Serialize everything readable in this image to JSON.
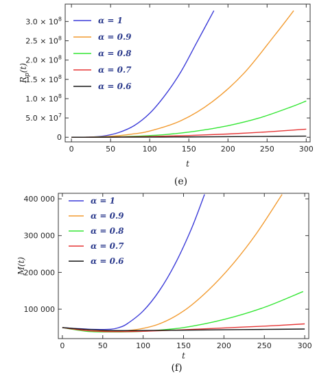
{
  "charts": [
    {
      "type": "line",
      "panel_label": "(e)",
      "xlabel": "t",
      "ylabel": "R_p(t)",
      "ylabel_main": "R",
      "ylabel_sub": "p",
      "ylabel_tail": "(t)",
      "xlim": [
        -8,
        305
      ],
      "ylim": [
        -12000000.0,
        345000000.0
      ],
      "x_ticks": [
        0,
        50,
        100,
        150,
        200,
        250,
        300
      ],
      "x_tick_labels": [
        "0",
        "50",
        "100",
        "150",
        "200",
        "250",
        "300"
      ],
      "y_ticks": [
        0,
        50000000.0,
        100000000.0,
        150000000.0,
        200000000.0,
        250000000.0,
        300000000.0
      ],
      "y_tick_labels": [
        "0",
        "5.0 × 10",
        "1.0 × 10",
        "1.5 × 10",
        "2.0 × 10",
        "2.5 × 10",
        "3.0 × 10"
      ],
      "y_tick_exps": [
        "",
        "7",
        "8",
        "8",
        "8",
        "8",
        "8"
      ],
      "legend_position": "top-left",
      "series": [
        {
          "name": "α = 1",
          "color": "#3a3ad8",
          "x": [
            0,
            20,
            40,
            60,
            80,
            100,
            120,
            140,
            160,
            182
          ],
          "y": [
            0,
            300000.0,
            3000000.0,
            12000000.0,
            30000000.0,
            62000000.0,
            110000000.0,
            170000000.0,
            245000000.0,
            328000000.0
          ]
        },
        {
          "name": "α = 0.9",
          "color": "#f29a2e",
          "x": [
            0,
            20,
            40,
            60,
            80,
            100,
            140,
            180,
            220,
            260,
            284
          ],
          "y": [
            0,
            200000.0,
            1400000.0,
            4000000.0,
            9000000.0,
            16000000.0,
            43000000.0,
            92000000.0,
            165000000.0,
            265000000.0,
            328000000.0
          ]
        },
        {
          "name": "α = 0.8",
          "color": "#33e633",
          "x": [
            0,
            40,
            80,
            120,
            160,
            200,
            240,
            280,
            300
          ],
          "y": [
            0,
            500000.0,
            2500000.0,
            7000000.0,
            16000000.0,
            30000000.0,
            50000000.0,
            78000000.0,
            94000000.0
          ]
        },
        {
          "name": "α = 0.7",
          "color": "#e53333",
          "x": [
            0,
            50,
            100,
            150,
            200,
            250,
            300
          ],
          "y": [
            0,
            400000.0,
            1800000.0,
            4500000.0,
            8500000.0,
            14000000.0,
            21000000.0
          ]
        },
        {
          "name": "α = 0.6",
          "color": "#111111",
          "x": [
            0,
            60,
            120,
            180,
            240,
            300
          ],
          "y": [
            0,
            200000.0,
            600000.0,
            1200000.0,
            2000000.0,
            3000000.0
          ]
        }
      ]
    },
    {
      "type": "line",
      "panel_label": "(f)",
      "xlabel": "t",
      "ylabel": "M(t)",
      "ylabel_main": "M(t)",
      "ylabel_sub": "",
      "ylabel_tail": "",
      "xlim": [
        -5,
        305
      ],
      "ylim": [
        20000,
        415000
      ],
      "x_ticks": [
        0,
        50,
        100,
        150,
        200,
        250,
        300
      ],
      "x_tick_labels": [
        "0",
        "50",
        "100",
        "150",
        "200",
        "250",
        "300"
      ],
      "y_ticks": [
        100000,
        200000,
        300000,
        400000
      ],
      "y_tick_labels": [
        "100 000",
        "200 000",
        "300 000",
        "400 000"
      ],
      "y_tick_exps": [
        "",
        "",
        "",
        ""
      ],
      "legend_position": "top-left",
      "series": [
        {
          "name": "α = 1",
          "color": "#3a3ad8",
          "x": [
            0,
            20,
            40,
            60,
            70,
            80,
            100,
            120,
            140,
            160,
            176
          ],
          "y": [
            50000,
            47000,
            45000,
            45500,
            50000,
            60000,
            95000,
            150000,
            225000,
            320000,
            412000
          ]
        },
        {
          "name": "α = 0.9",
          "color": "#f29a2e",
          "x": [
            0,
            30,
            60,
            90,
            120,
            150,
            180,
            210,
            240,
            272
          ],
          "y": [
            50000,
            42000,
            40000,
            44000,
            60000,
            95000,
            150000,
            220000,
            305000,
            412000
          ]
        },
        {
          "name": "α = 0.8",
          "color": "#33e633",
          "x": [
            0,
            30,
            60,
            100,
            150,
            200,
            250,
            298
          ],
          "y": [
            50000,
            40000,
            38000,
            40000,
            50000,
            72000,
            105000,
            148000
          ]
        },
        {
          "name": "α = 0.7",
          "color": "#e53333",
          "x": [
            0,
            30,
            60,
            100,
            150,
            200,
            250,
            300
          ],
          "y": [
            50000,
            42000,
            39000,
            40000,
            44000,
            49000,
            54000,
            60000
          ]
        },
        {
          "name": "α = 0.6",
          "color": "#111111",
          "x": [
            0,
            30,
            60,
            100,
            150,
            200,
            250,
            300
          ],
          "y": [
            50000,
            45000,
            42000,
            42000,
            43000,
            44000,
            45000,
            46000
          ]
        }
      ]
    }
  ]
}
